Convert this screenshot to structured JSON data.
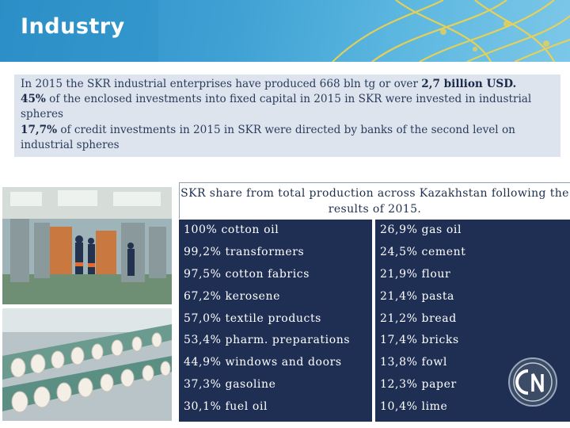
{
  "header": {
    "title": "Industry"
  },
  "intro": {
    "line1_prefix": "In 2015 the SKR industrial enterprises have produced 668 bln tg or over ",
    "line1_bold": "2,7 billion USD.",
    "line2_bold": "45%",
    "line2_text": " of the enclosed investments into fixed capital in 2015 in SKR were invested in industrial spheres",
    "line3_bold": "17,7%",
    "line3_text": " of credit investments in 2015 in SKR were directed by banks of the second level on industrial spheres"
  },
  "table": {
    "title": "SKR share from total production across Kazakhstan following the results of 2015.",
    "left": [
      "100% cotton oil",
      "99,2% transformers",
      "97,5% cotton fabrics",
      "67,2% kerosene",
      "57,0% textile products",
      "53,4% pharm. preparations",
      "44,9% windows and doors",
      "37,3% gasoline",
      "30,1% fuel oil"
    ],
    "right": [
      "26,9% gas oil",
      "24,5% cement",
      "21,9% flour",
      "21,4% pasta",
      "21,2% bread",
      "17,4% bricks",
      "13,8% fowl",
      "12,3% paper",
      "10,4% lime"
    ]
  },
  "colors": {
    "banner": "#3ea0d3",
    "table_bg": "#1f2f54",
    "intro_bg": "#dde4ee"
  },
  "icons": {
    "banner_pattern": "ornament-pattern",
    "logo": "circle-on-logo"
  }
}
